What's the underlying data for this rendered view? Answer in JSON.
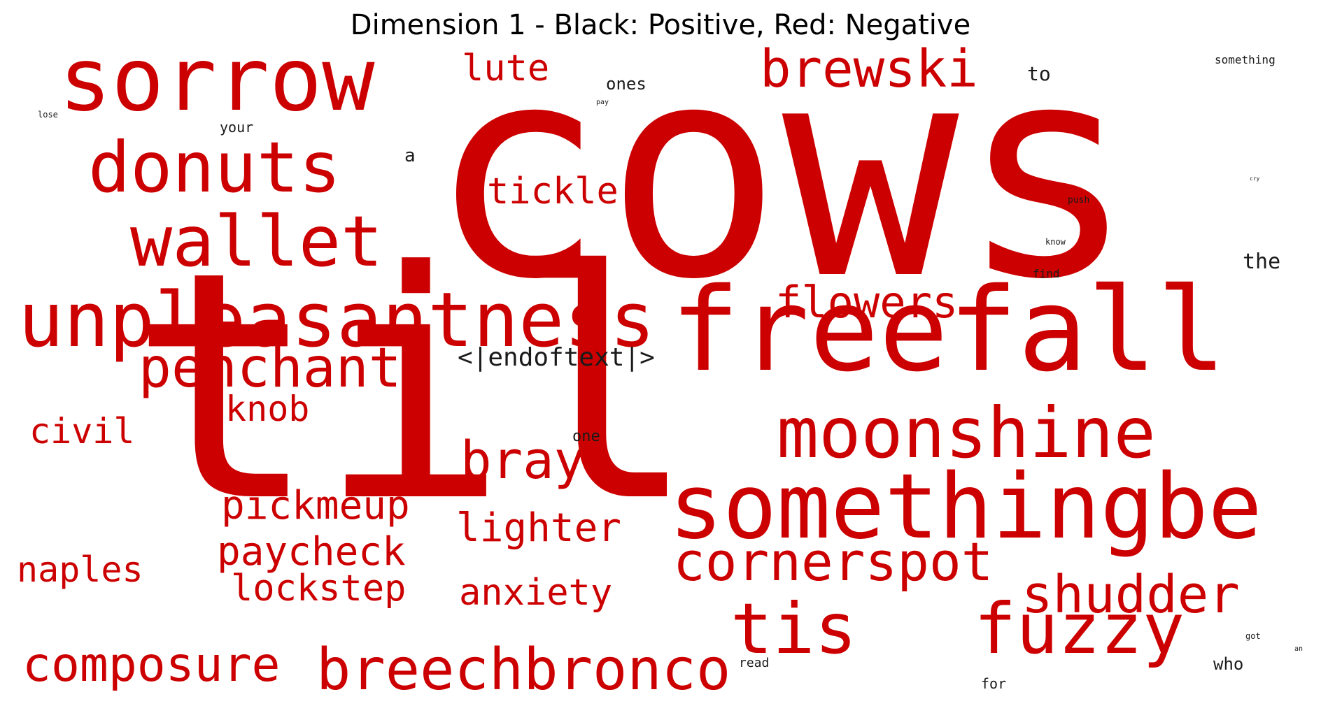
{
  "title": "Dimension 1 - Black: Positive, Red: Negative",
  "colors": {
    "positive": "#1a1a1a",
    "negative": "#cc0000",
    "background": "#ffffff"
  },
  "words": [
    {
      "text": "cows",
      "sign": "negative",
      "weight": 100
    },
    {
      "text": "til",
      "sign": "negative",
      "weight": 100
    },
    {
      "text": "freefall",
      "sign": "negative",
      "weight": 52
    },
    {
      "text": "sorrow",
      "sign": "negative",
      "weight": 38
    },
    {
      "text": "somethingbe",
      "sign": "negative",
      "weight": 38
    },
    {
      "text": "unpleasantness",
      "sign": "negative",
      "weight": 34
    },
    {
      "text": "wallet",
      "sign": "negative",
      "weight": 33
    },
    {
      "text": "donuts",
      "sign": "negative",
      "weight": 33
    },
    {
      "text": "moonshine",
      "sign": "negative",
      "weight": 30
    },
    {
      "text": "fuzzy",
      "sign": "negative",
      "weight": 30
    },
    {
      "text": "tis",
      "sign": "negative",
      "weight": 28
    },
    {
      "text": "breechbronco",
      "sign": "negative",
      "weight": 25
    },
    {
      "text": "penchant",
      "sign": "negative",
      "weight": 24
    },
    {
      "text": "cornerspot",
      "sign": "negative",
      "weight": 23
    },
    {
      "text": "brewski",
      "sign": "negative",
      "weight": 22
    },
    {
      "text": "bray",
      "sign": "negative",
      "weight": 22
    },
    {
      "text": "shudder",
      "sign": "negative",
      "weight": 22
    },
    {
      "text": "composure",
      "sign": "negative",
      "weight": 20
    },
    {
      "text": "flowers",
      "sign": "negative",
      "weight": 19
    },
    {
      "text": "pickmeup",
      "sign": "negative",
      "weight": 17
    },
    {
      "text": "paycheck",
      "sign": "negative",
      "weight": 17
    },
    {
      "text": "lighter",
      "sign": "negative",
      "weight": 17
    },
    {
      "text": "lockstep",
      "sign": "negative",
      "weight": 16
    },
    {
      "text": "anxiety",
      "sign": "negative",
      "weight": 16
    },
    {
      "text": "tickle",
      "sign": "negative",
      "weight": 16
    },
    {
      "text": "lute",
      "sign": "negative",
      "weight": 16
    },
    {
      "text": "knob",
      "sign": "negative",
      "weight": 15
    },
    {
      "text": "civil",
      "sign": "negative",
      "weight": 15
    },
    {
      "text": "naples",
      "sign": "negative",
      "weight": 15
    },
    {
      "text": "<|endoftext|>",
      "sign": "positive",
      "weight": 10
    },
    {
      "text": "the",
      "sign": "positive",
      "weight": 7
    },
    {
      "text": "to",
      "sign": "positive",
      "weight": 7
    },
    {
      "text": "ones",
      "sign": "positive",
      "weight": 6
    },
    {
      "text": "a",
      "sign": "positive",
      "weight": 6
    },
    {
      "text": "who",
      "sign": "positive",
      "weight": 6
    },
    {
      "text": "one",
      "sign": "positive",
      "weight": 5
    },
    {
      "text": "your",
      "sign": "positive",
      "weight": 5
    },
    {
      "text": "read",
      "sign": "positive",
      "weight": 5
    },
    {
      "text": "for",
      "sign": "positive",
      "weight": 5
    },
    {
      "text": "find",
      "sign": "positive",
      "weight": 4
    },
    {
      "text": "something",
      "sign": "positive",
      "weight": 4
    },
    {
      "text": "push",
      "sign": "positive",
      "weight": 3
    },
    {
      "text": "know",
      "sign": "positive",
      "weight": 3
    },
    {
      "text": "got",
      "sign": "positive",
      "weight": 3
    },
    {
      "text": "lose",
      "sign": "positive",
      "weight": 3
    },
    {
      "text": "an",
      "sign": "positive",
      "weight": 2
    },
    {
      "text": "pay",
      "sign": "positive",
      "weight": 2
    },
    {
      "text": "cry",
      "sign": "positive",
      "weight": 2
    }
  ]
}
